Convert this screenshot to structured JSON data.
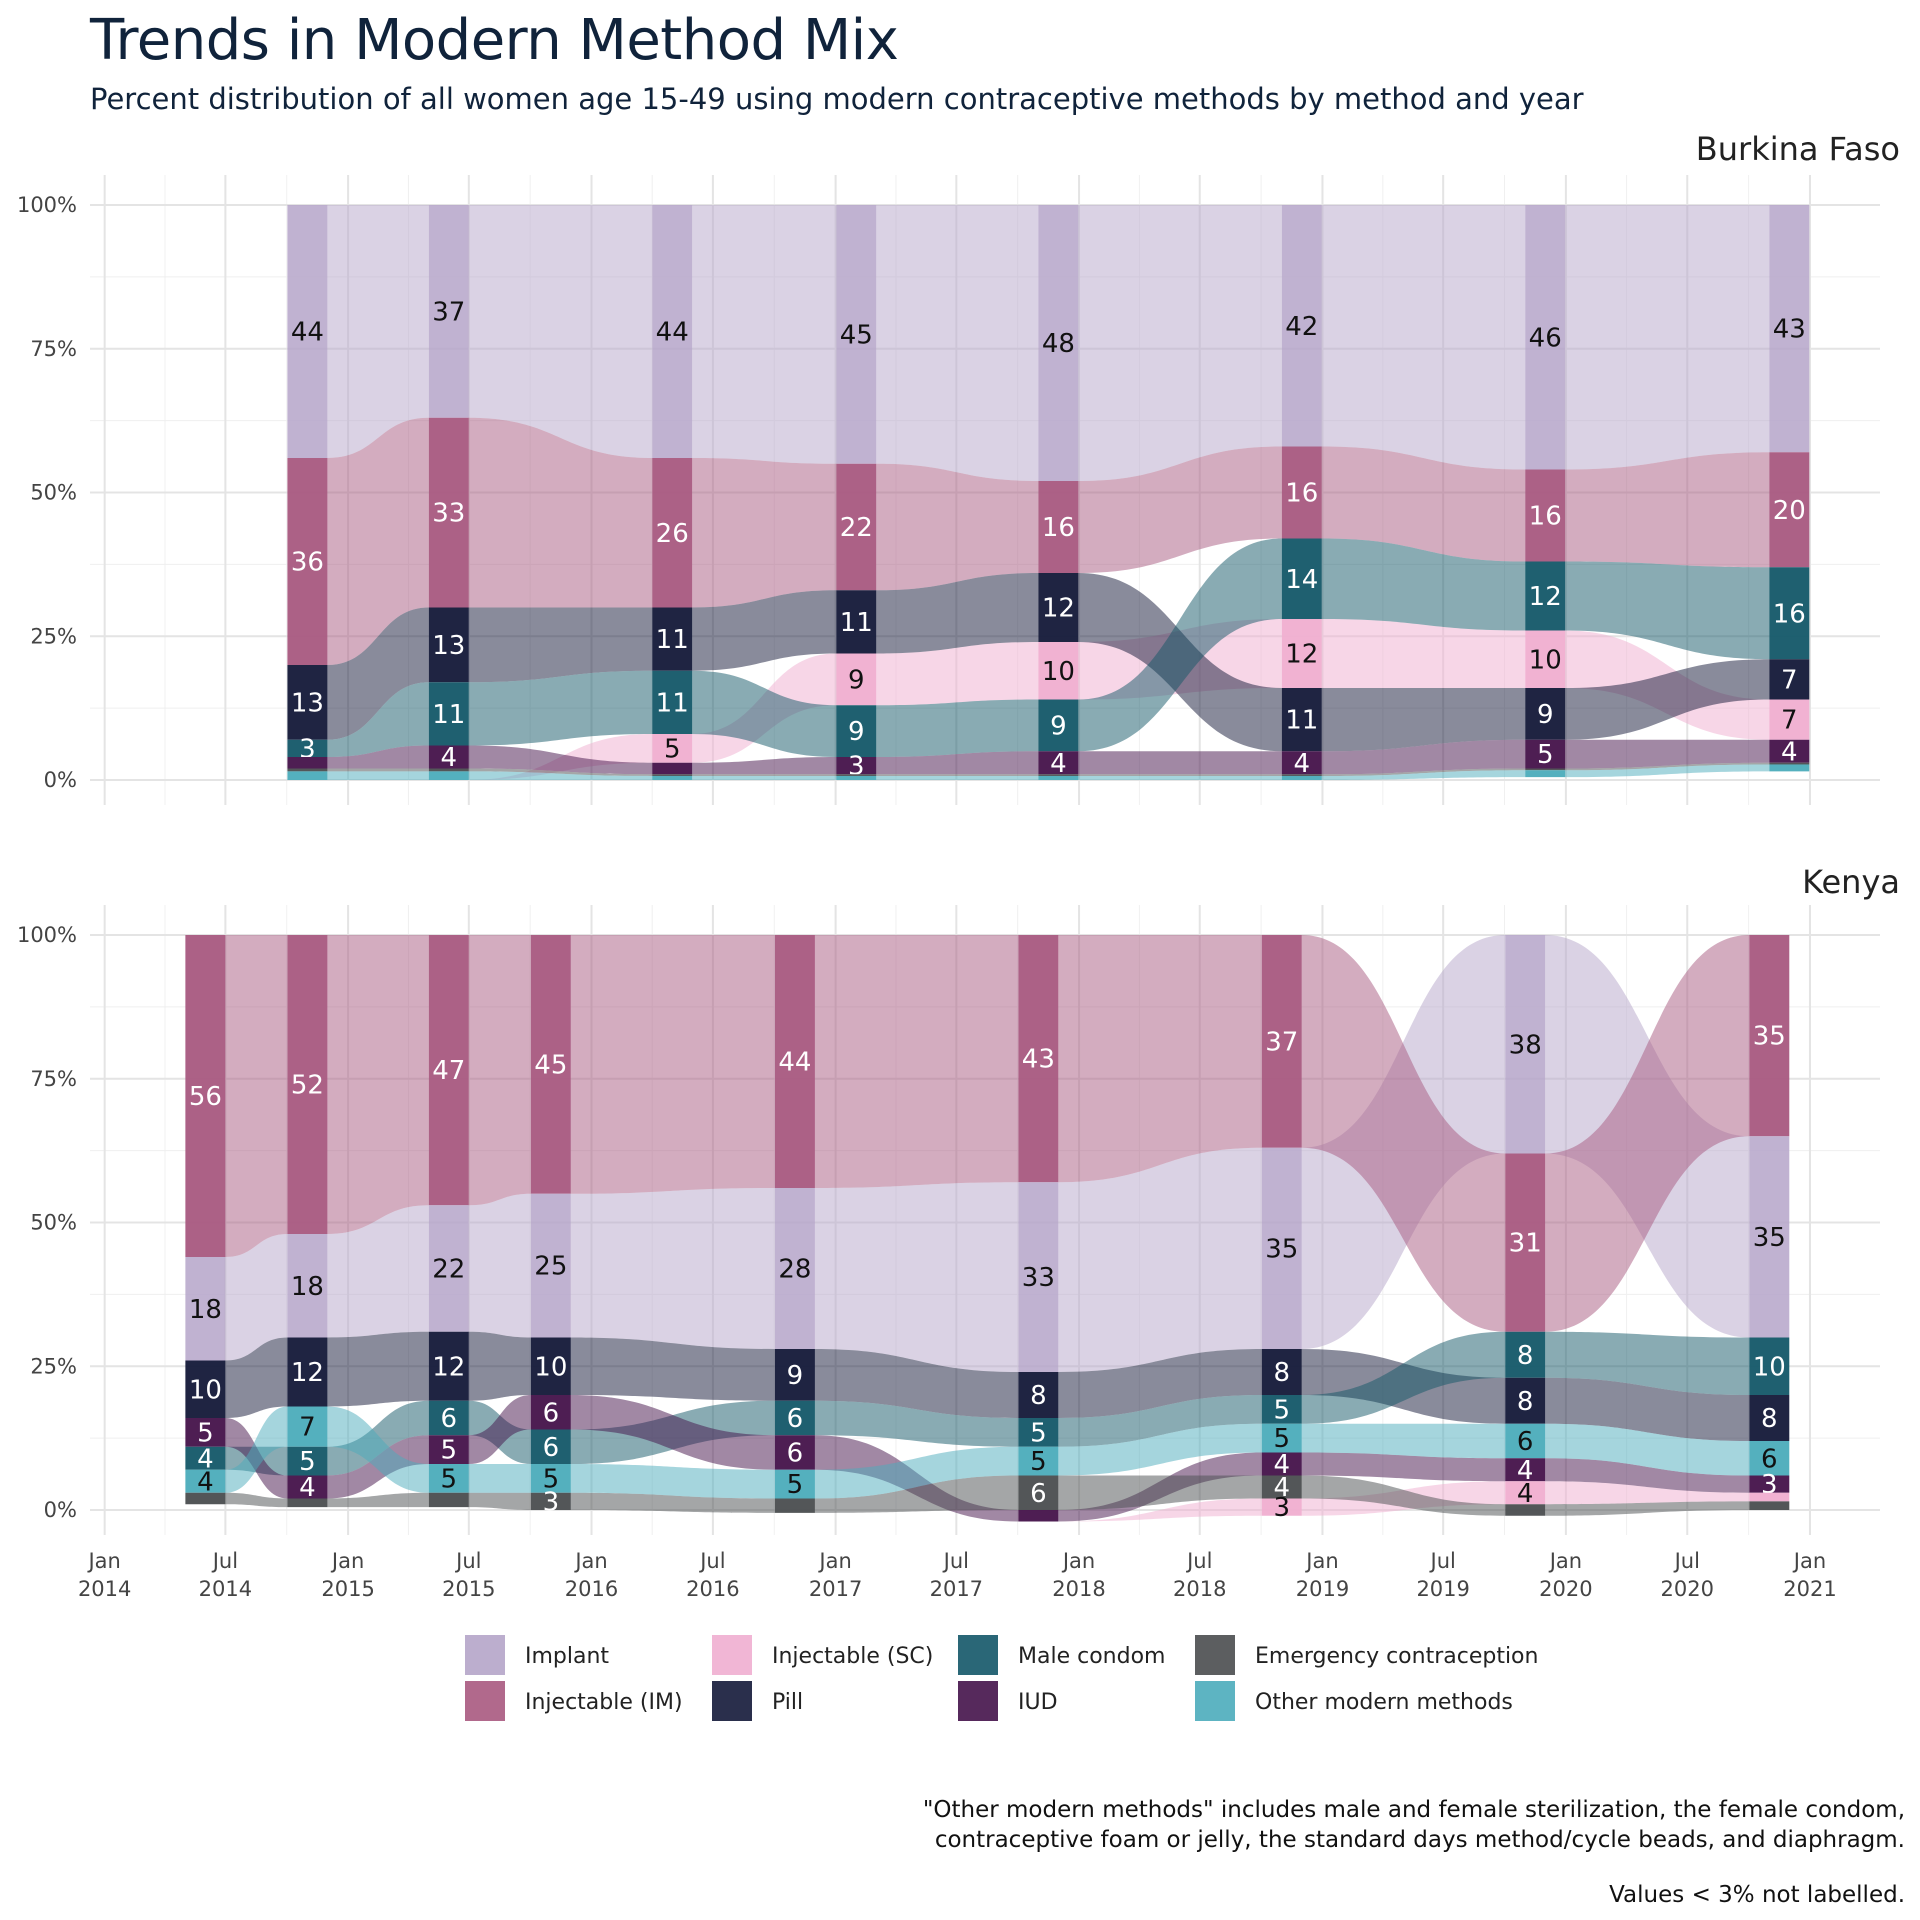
{
  "title": "Trends in Modern Method Mix",
  "subtitle": "Percent distribution of all women age 15-49 using modern contraceptive methods by method and year",
  "caption_lines": [
    "\"Other modern methods\" includes male and female sterilization, the female condom,",
    "contraceptive foam or jelly, the standard days method/cycle beads, and diaphragm."
  ],
  "note": "Values < 3% not labelled.",
  "chart_data": {
    "type": "area",
    "chart_kind": "alluvial stacked percentage bars",
    "y_range": [
      0,
      100
    ],
    "y_ticks": [
      0,
      25,
      50,
      75,
      100
    ],
    "y_tick_labels": [
      "0%",
      "25%",
      "50%",
      "75%",
      "100%"
    ],
    "x_ticks": [
      {
        "date": "2014-01-01",
        "label": [
          "Jan",
          "2014"
        ]
      },
      {
        "date": "2014-07-01",
        "label": [
          "Jul",
          "2014"
        ]
      },
      {
        "date": "2015-01-01",
        "label": [
          "Jan",
          "2015"
        ]
      },
      {
        "date": "2015-07-01",
        "label": [
          "Jul",
          "2015"
        ]
      },
      {
        "date": "2016-01-01",
        "label": [
          "Jan",
          "2016"
        ]
      },
      {
        "date": "2016-07-01",
        "label": [
          "Jul",
          "2016"
        ]
      },
      {
        "date": "2017-01-01",
        "label": [
          "Jan",
          "2017"
        ]
      },
      {
        "date": "2017-07-01",
        "label": [
          "Jul",
          "2017"
        ]
      },
      {
        "date": "2018-01-01",
        "label": [
          "Jan",
          "2018"
        ]
      },
      {
        "date": "2018-07-01",
        "label": [
          "Jul",
          "2018"
        ]
      },
      {
        "date": "2019-01-01",
        "label": [
          "Jan",
          "2019"
        ]
      },
      {
        "date": "2019-07-01",
        "label": [
          "Jul",
          "2019"
        ]
      },
      {
        "date": "2020-01-01",
        "label": [
          "Jan",
          "2020"
        ]
      },
      {
        "date": "2020-07-01",
        "label": [
          "Jul",
          "2020"
        ]
      },
      {
        "date": "2021-01-01",
        "label": [
          "Jan",
          "2021"
        ]
      }
    ],
    "x_range": [
      "2013-12-10",
      "2021-04-01"
    ],
    "methods": [
      {
        "name": "Implant",
        "color": "#b5a5c9"
      },
      {
        "name": "Injectable (IM)",
        "color": "#a8597f"
      },
      {
        "name": "Injectable (SC)",
        "color": "#f0aed0"
      },
      {
        "name": "Pill",
        "color": "#131838"
      },
      {
        "name": "Male condom",
        "color": "#135768"
      },
      {
        "name": "IUD",
        "color": "#44124a"
      },
      {
        "name": "Emergency contraception",
        "color": "#4a4d4f"
      },
      {
        "name": "Other modern methods",
        "color": "#4bacbb"
      }
    ],
    "legend_position": "bottom",
    "grid": true,
    "panels": [
      {
        "name": "Burkina Faso",
        "order": [
          "Implant",
          "Injectable (IM)",
          "Pill",
          "Male condom",
          "Injectable (SC)",
          "IUD",
          "Emergency contraception",
          "Other modern methods"
        ],
        "dates": [
          "2014-11-01",
          "2015-06-01",
          "2016-05-01",
          "2017-02-01",
          "2017-12-01",
          "2018-12-01",
          "2019-12-01",
          "2020-12-01"
        ],
        "values": {
          "Implant": [
            44,
            37,
            44,
            45,
            48,
            42,
            46,
            43
          ],
          "Injectable (IM)": [
            36,
            33,
            26,
            22,
            16,
            16,
            16,
            20
          ],
          "Pill": [
            13,
            13,
            11,
            11,
            12,
            11,
            9,
            7
          ],
          "Male condom": [
            3,
            11,
            11,
            9,
            9,
            14,
            12,
            16
          ],
          "Injectable (SC)": [
            0,
            0,
            5,
            9,
            10,
            12,
            10,
            7
          ],
          "IUD": [
            2,
            4,
            2,
            3,
            4,
            4,
            5,
            4
          ],
          "Emergency contraception": [
            0.5,
            0.5,
            0.3,
            0.3,
            0.3,
            0.3,
            0.3,
            0.3
          ],
          "Other modern methods": [
            1.5,
            1.5,
            0.7,
            0.7,
            0.7,
            0.7,
            1.2,
            1.2
          ]
        },
        "order_per_date": [
          [
            "Implant",
            "Injectable (IM)",
            "Pill",
            "Male condom",
            "IUD",
            "Emergency contraception",
            "Other modern methods",
            "Injectable (SC)"
          ],
          [
            "Implant",
            "Injectable (IM)",
            "Pill",
            "Male condom",
            "IUD",
            "Emergency contraception",
            "Other modern methods",
            "Injectable (SC)"
          ],
          [
            "Implant",
            "Injectable (IM)",
            "Pill",
            "Male condom",
            "Injectable (SC)",
            "IUD",
            "Emergency contraception",
            "Other modern methods"
          ],
          [
            "Implant",
            "Injectable (IM)",
            "Pill",
            "Injectable (SC)",
            "Male condom",
            "IUD",
            "Emergency contraception",
            "Other modern methods"
          ],
          [
            "Implant",
            "Injectable (IM)",
            "Pill",
            "Injectable (SC)",
            "Male condom",
            "IUD",
            "Emergency contraception",
            "Other modern methods"
          ],
          [
            "Implant",
            "Injectable (IM)",
            "Male condom",
            "Injectable (SC)",
            "Pill",
            "IUD",
            "Emergency contraception",
            "Other modern methods"
          ],
          [
            "Implant",
            "Injectable (IM)",
            "Male condom",
            "Injectable (SC)",
            "Pill",
            "IUD",
            "Emergency contraception",
            "Other modern methods"
          ],
          [
            "Implant",
            "Injectable (IM)",
            "Male condom",
            "Pill",
            "Injectable (SC)",
            "IUD",
            "Emergency contraception",
            "Other modern methods"
          ]
        ]
      },
      {
        "name": "Kenya",
        "dates": [
          "2014-06-01",
          "2014-11-01",
          "2015-06-01",
          "2015-11-01",
          "2016-11-01",
          "2017-11-01",
          "2018-11-01",
          "2019-11-01",
          "2020-11-01"
        ],
        "values": {
          "Injectable (IM)": [
            56,
            52,
            47,
            45,
            44,
            43,
            37,
            31,
            35
          ],
          "Implant": [
            18,
            18,
            22,
            25,
            28,
            33,
            35,
            38,
            35
          ],
          "Pill": [
            10,
            12,
            12,
            10,
            9,
            8,
            8,
            8,
            8
          ],
          "IUD": [
            5,
            4,
            5,
            6,
            6,
            2,
            4,
            4,
            3
          ],
          "Male condom": [
            4,
            5,
            6,
            6,
            6,
            5,
            5,
            8,
            10
          ],
          "Other modern methods": [
            4,
            7,
            5,
            5,
            5,
            5,
            5,
            6,
            6
          ],
          "Emergency contraception": [
            2,
            1.5,
            2.5,
            3,
            2.5,
            6,
            4,
            2,
            1.5
          ],
          "Injectable (SC)": [
            0,
            0,
            0,
            0,
            0,
            0,
            3,
            4,
            1.5
          ]
        },
        "order_per_date": [
          [
            "Injectable (IM)",
            "Implant",
            "Pill",
            "IUD",
            "Male condom",
            "Other modern methods",
            "Emergency contraception",
            "Injectable (SC)"
          ],
          [
            "Injectable (IM)",
            "Implant",
            "Pill",
            "Other modern methods",
            "Male condom",
            "IUD",
            "Emergency contraception",
            "Injectable (SC)"
          ],
          [
            "Injectable (IM)",
            "Implant",
            "Pill",
            "Male condom",
            "IUD",
            "Other modern methods",
            "Emergency contraception",
            "Injectable (SC)"
          ],
          [
            "Injectable (IM)",
            "Implant",
            "Pill",
            "IUD",
            "Male condom",
            "Other modern methods",
            "Emergency contraception",
            "Injectable (SC)"
          ],
          [
            "Injectable (IM)",
            "Implant",
            "Pill",
            "Male condom",
            "IUD",
            "Other modern methods",
            "Emergency contraception",
            "Injectable (SC)"
          ],
          [
            "Injectable (IM)",
            "Implant",
            "Pill",
            "Male condom",
            "Other modern methods",
            "Emergency contraception",
            "IUD",
            "Injectable (SC)"
          ],
          [
            "Injectable (IM)",
            "Implant",
            "Pill",
            "Male condom",
            "Other modern methods",
            "IUD",
            "Emergency contraception",
            "Injectable (SC)"
          ],
          [
            "Implant",
            "Injectable (IM)",
            "Male condom",
            "Pill",
            "Other modern methods",
            "IUD",
            "Injectable (SC)",
            "Emergency contraception"
          ],
          [
            "Injectable (IM)",
            "Implant",
            "Male condom",
            "Pill",
            "Other modern methods",
            "IUD",
            "Injectable (SC)",
            "Emergency contraception"
          ]
        ]
      }
    ],
    "label_threshold": 3
  }
}
